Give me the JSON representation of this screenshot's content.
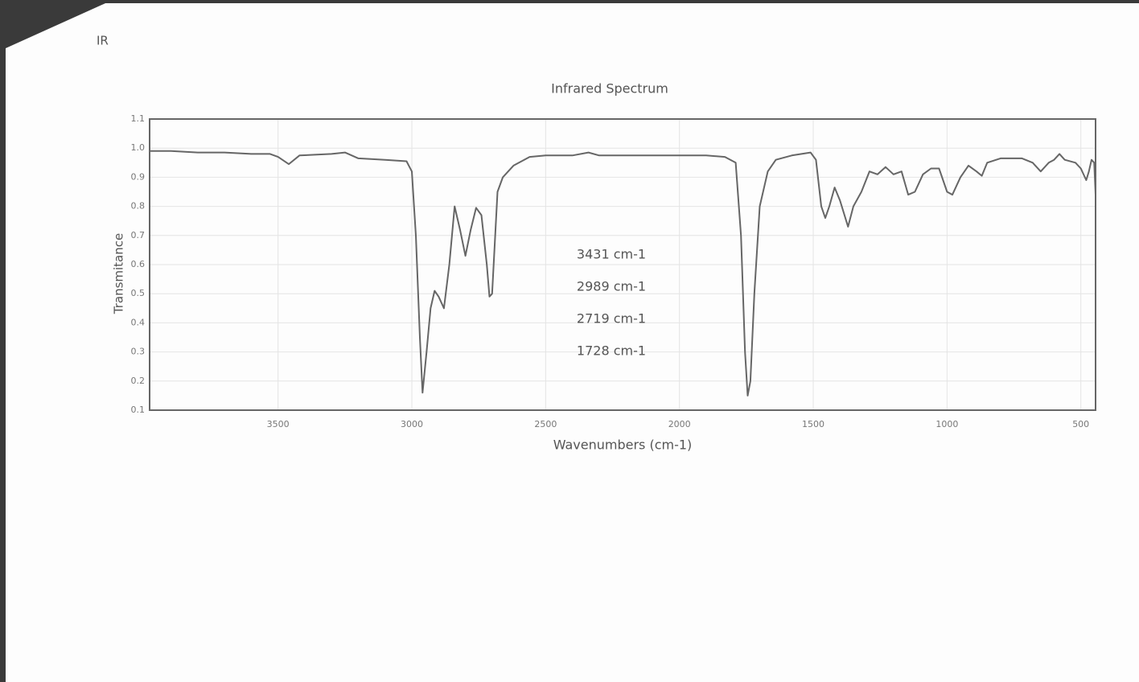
{
  "header": {
    "title": "IR"
  },
  "chart_data": {
    "type": "line",
    "title": "Infrared Spectrum",
    "x_label": "Wavenumbers (cm-1)",
    "y_label": "Transmitance",
    "annotations": [
      "3431 cm-1",
      "2989 cm-1",
      "2719 cm-1",
      "1728 cm-1"
    ],
    "color": "#666666",
    "grid": true,
    "xlim": [
      3980,
      445
    ],
    "ylim": [
      0.1,
      1.1
    ],
    "xticks": [
      3500,
      3000,
      2500,
      2000,
      1500,
      1000,
      500
    ],
    "yticks": [
      0.1,
      0.2,
      0.3,
      0.4,
      0.5,
      0.6,
      0.7,
      0.8,
      0.9,
      {
        "value": 1,
        "label": "1.0"
      },
      1.1
    ],
    "x": [
      3980,
      3900,
      3800,
      3700,
      3600,
      3530,
      3500,
      3460,
      3420,
      3300,
      3250,
      3200,
      3100,
      3020,
      3000,
      2985,
      2970,
      2960,
      2945,
      2930,
      2915,
      2900,
      2880,
      2860,
      2840,
      2820,
      2800,
      2780,
      2760,
      2740,
      2720,
      2710,
      2700,
      2680,
      2660,
      2620,
      2560,
      2500,
      2400,
      2340,
      2300,
      2100,
      2020,
      1900,
      1830,
      1790,
      1770,
      1755,
      1745,
      1735,
      1720,
      1700,
      1670,
      1640,
      1580,
      1510,
      1490,
      1470,
      1455,
      1440,
      1420,
      1400,
      1370,
      1350,
      1320,
      1290,
      1260,
      1230,
      1200,
      1170,
      1145,
      1120,
      1090,
      1060,
      1030,
      1000,
      980,
      950,
      920,
      890,
      870,
      850,
      800,
      720,
      680,
      650,
      620,
      600,
      580,
      560,
      520,
      500,
      480,
      470,
      460,
      450,
      445
    ],
    "values": [
      0.99,
      0.99,
      0.985,
      0.985,
      0.98,
      0.98,
      0.97,
      0.945,
      0.975,
      0.98,
      0.985,
      0.965,
      0.96,
      0.955,
      0.92,
      0.7,
      0.35,
      0.16,
      0.3,
      0.45,
      0.51,
      0.49,
      0.45,
      0.6,
      0.8,
      0.72,
      0.63,
      0.72,
      0.795,
      0.77,
      0.6,
      0.49,
      0.5,
      0.85,
      0.9,
      0.94,
      0.97,
      0.975,
      0.975,
      0.985,
      0.975,
      0.975,
      0.975,
      0.975,
      0.97,
      0.95,
      0.7,
      0.3,
      0.15,
      0.2,
      0.5,
      0.8,
      0.92,
      0.96,
      0.975,
      0.985,
      0.96,
      0.8,
      0.76,
      0.8,
      0.865,
      0.82,
      0.73,
      0.8,
      0.85,
      0.92,
      0.91,
      0.935,
      0.91,
      0.92,
      0.84,
      0.85,
      0.91,
      0.93,
      0.93,
      0.85,
      0.84,
      0.9,
      0.94,
      0.92,
      0.905,
      0.95,
      0.965,
      0.965,
      0.95,
      0.92,
      0.95,
      0.96,
      0.98,
      0.96,
      0.95,
      0.93,
      0.89,
      0.92,
      0.96,
      0.95,
      0.84
    ]
  }
}
